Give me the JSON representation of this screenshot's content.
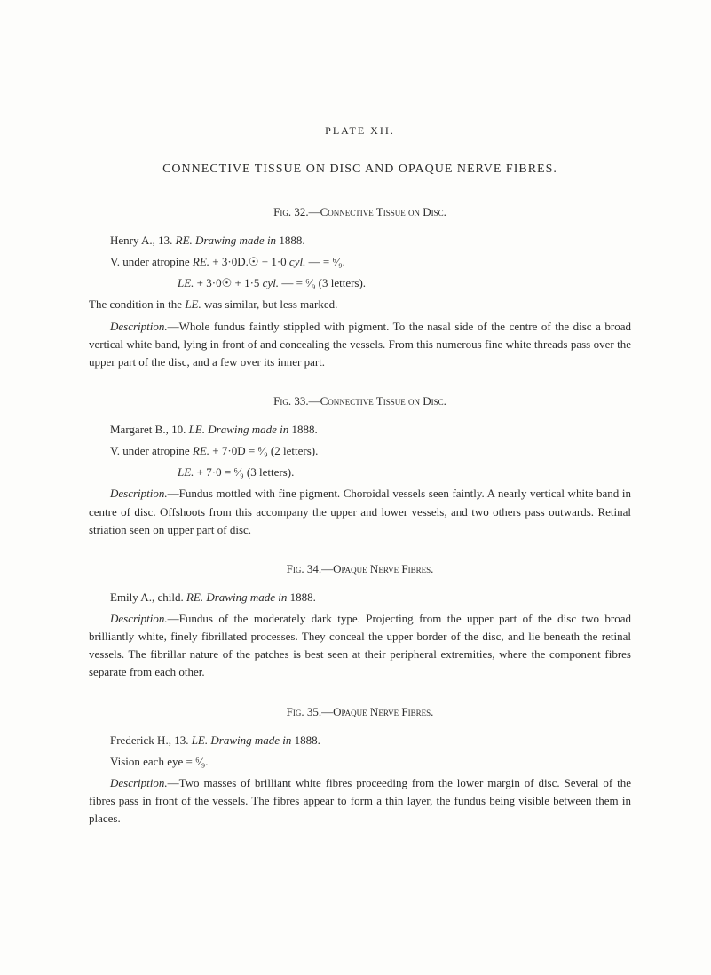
{
  "plate_label": "PLATE XII.",
  "main_title": "CONNECTIVE TISSUE ON DISC AND OPAQUE NERVE FIBRES.",
  "fig32": {
    "caption": "Fig. 32.—Connective Tissue on Disc.",
    "line1_name": "Henry A., 13. ",
    "line1_italic": "RE. Drawing made in ",
    "line1_year": "1888.",
    "line2a": "V. under atropine ",
    "line2b": "RE.",
    "line2c": " + 3·0D.☉ + 1·0 ",
    "line2d": "cyl.",
    "line2e": " — = ⁶⁄₉.",
    "line3a": "LE.",
    "line3b": " + 3·0☉ + 1·5 ",
    "line3c": "cyl.",
    "line3d": " — = ⁶⁄₉ (3 letters).",
    "line4a": "The condition in the ",
    "line4b": "LE.",
    "line4c": " was similar, but less marked.",
    "desc_label": "Description.",
    "desc_text": "—Whole fundus faintly stippled with pigment. To the nasal side of the centre of the disc a broad vertical white band, lying in front of and concealing the vessels. From this numerous fine white threads pass over the upper part of the disc, and a few over its inner part."
  },
  "fig33": {
    "caption": "Fig. 33.—Connective Tissue on Disc.",
    "line1_name": "Margaret B., 10. ",
    "line1_italic": "LE. Drawing made in ",
    "line1_year": "1888.",
    "line2a": "V. under atropine ",
    "line2b": "RE.",
    "line2c": " + 7·0D = ⁶⁄₉ (2 letters).",
    "line3a": "LE.",
    "line3b": " + 7·0 = ⁶⁄₉ (3 letters).",
    "desc_label": "Description.",
    "desc_text": "—Fundus mottled with fine pigment. Choroidal vessels seen faintly. A nearly vertical white band in centre of disc. Offshoots from this accompany the upper and lower vessels, and two others pass outwards. Retinal striation seen on upper part of disc."
  },
  "fig34": {
    "caption": "Fig. 34.—Opaque Nerve Fibres.",
    "line1_name": "Emily A., child. ",
    "line1_italic": "RE. Drawing made in ",
    "line1_year": "1888.",
    "desc_label": "Description.",
    "desc_text": "—Fundus of the moderately dark type. Projecting from the upper part of the disc two broad brilliantly white, finely fibrillated processes. They conceal the upper border of the disc, and lie beneath the retinal vessels. The fibrillar nature of the patches is best seen at their peripheral extremities, where the component fibres separate from each other."
  },
  "fig35": {
    "caption": "Fig. 35.—Opaque Nerve Fibres.",
    "line1_name": "Frederick H., 13. ",
    "line1_italic": "LE. Drawing made in ",
    "line1_year": "1888.",
    "line2": "Vision each eye = ⁶⁄₉.",
    "desc_label": "Description.",
    "desc_text": "—Two masses of brilliant white fibres proceeding from the lower margin of disc. Several of the fibres pass in front of the vessels. The fibres appear to form a thin layer, the fundus being visible between them in places."
  }
}
